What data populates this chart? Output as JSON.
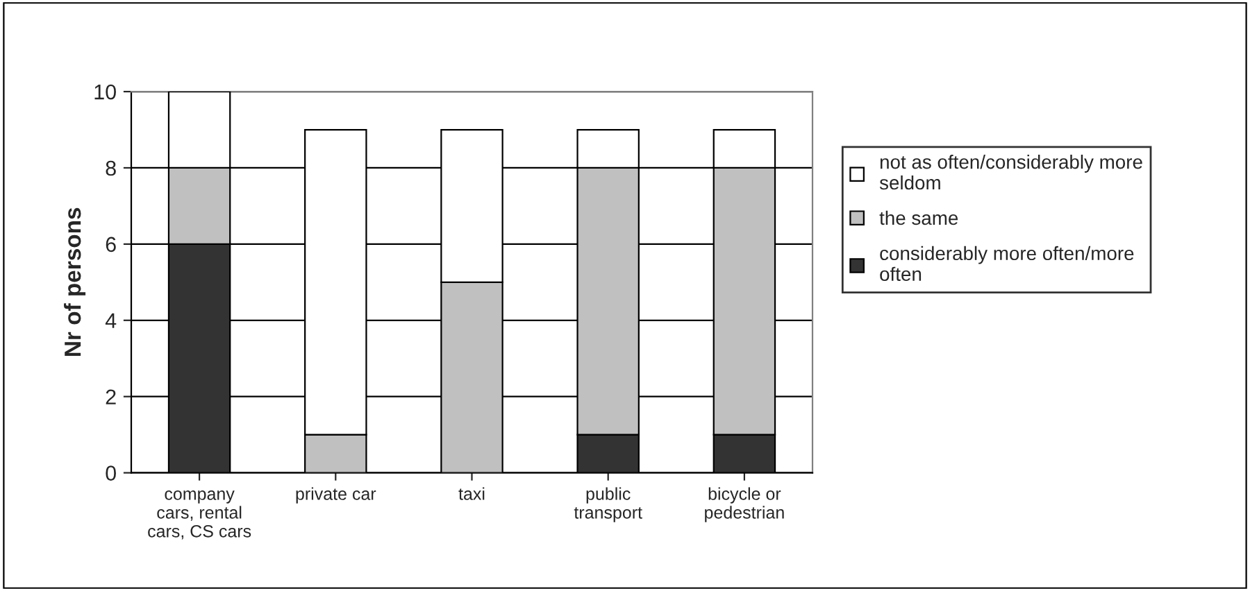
{
  "chart_data": {
    "type": "bar",
    "stacked": true,
    "ylabel": "Nr of persons",
    "categories": [
      "company\ncars, rental\ncars, CS cars",
      "private car",
      "taxi",
      "public\ntransport",
      "bicycle or\npedestrian"
    ],
    "series": [
      {
        "name": "considerably more often/more\noften",
        "color": "#333333",
        "values": [
          6,
          0,
          0,
          1,
          1
        ]
      },
      {
        "name": "the same",
        "color": "#c0c0c0",
        "values": [
          2,
          1,
          5,
          7,
          7
        ]
      },
      {
        "name": "not as often/considerably more\nseldom",
        "color": "#ffffff",
        "values": [
          2,
          8,
          4,
          1,
          1
        ]
      }
    ],
    "ylim": [
      0,
      10
    ],
    "yticks": [
      0,
      2,
      4,
      6,
      8,
      10
    ],
    "grid": "y",
    "legend": "right"
  }
}
